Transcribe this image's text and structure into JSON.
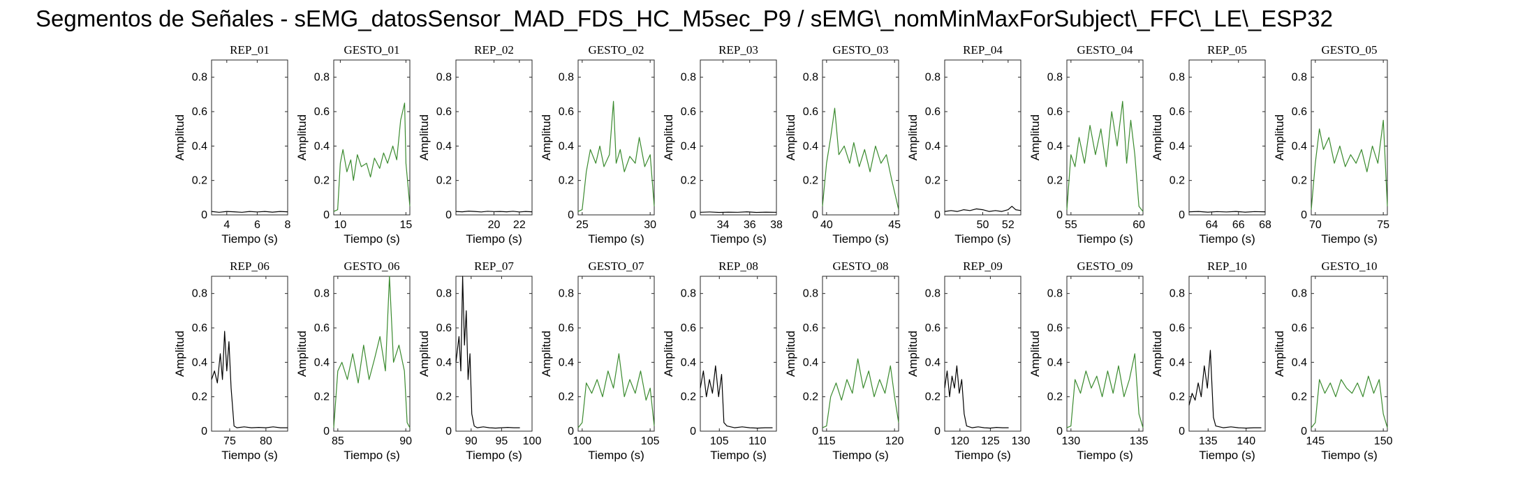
{
  "title": "Segmentos de Señales - sEMG_datosSensor_MAD_FDS_HC_M5sec_P9 / sEMG\\_nomMinMaxForSubject\\_FFC\\_LE\\_ESP32",
  "colors": {
    "rep": "#000000",
    "gesto": "#3a8a2e"
  },
  "chart_data": [
    {
      "type": "line",
      "title": "REP_01",
      "kind": "rep",
      "xlim": [
        3,
        8
      ],
      "xticks": [
        4,
        6,
        8
      ],
      "ylim": [
        0,
        0.9
      ],
      "yticks": [
        0,
        0.2,
        0.4,
        0.6,
        0.8
      ],
      "xlabel": "Tiempo (s)",
      "ylabel": "Amplitud",
      "signal": {
        "x": [
          3,
          3.5,
          4,
          4.5,
          5,
          5.5,
          6,
          6.5,
          7,
          7.5,
          8
        ],
        "y": [
          0.02,
          0.015,
          0.02,
          0.018,
          0.015,
          0.02,
          0.017,
          0.02,
          0.016,
          0.02,
          0.018
        ]
      }
    },
    {
      "type": "line",
      "title": "GESTO_01",
      "kind": "gesto",
      "xlim": [
        9.5,
        15.3
      ],
      "xticks": [
        10,
        15
      ],
      "ylim": [
        0,
        0.9
      ],
      "yticks": [
        0,
        0.2,
        0.4,
        0.6,
        0.8
      ],
      "xlabel": "Tiempo (s)",
      "ylabel": "Amplitud",
      "signal": {
        "x": [
          9.5,
          9.8,
          10,
          10.2,
          10.5,
          10.8,
          11,
          11.3,
          11.6,
          12,
          12.3,
          12.6,
          13,
          13.3,
          13.6,
          14,
          14.3,
          14.6,
          14.9,
          15,
          15.3
        ],
        "y": [
          0.02,
          0.03,
          0.3,
          0.38,
          0.25,
          0.32,
          0.2,
          0.35,
          0.28,
          0.3,
          0.22,
          0.33,
          0.27,
          0.36,
          0.3,
          0.4,
          0.32,
          0.55,
          0.65,
          0.3,
          0.05
        ]
      }
    },
    {
      "type": "line",
      "title": "REP_02",
      "kind": "rep",
      "xlim": [
        17,
        23
      ],
      "xticks": [
        20,
        22
      ],
      "ylim": [
        0,
        0.9
      ],
      "yticks": [
        0,
        0.2,
        0.4,
        0.6,
        0.8
      ],
      "xlabel": "Tiempo (s)",
      "ylabel": "Amplitud",
      "signal": {
        "x": [
          17,
          17.5,
          18,
          18.5,
          19,
          19.5,
          20,
          20.5,
          21,
          21.5,
          22,
          22.5,
          23
        ],
        "y": [
          0.02,
          0.018,
          0.022,
          0.02,
          0.017,
          0.021,
          0.019,
          0.02,
          0.018,
          0.021,
          0.017,
          0.02,
          0.018
        ]
      }
    },
    {
      "type": "line",
      "title": "GESTO_02",
      "kind": "gesto",
      "xlim": [
        24.7,
        30.3
      ],
      "xticks": [
        25,
        30
      ],
      "ylim": [
        0,
        0.9
      ],
      "yticks": [
        0,
        0.2,
        0.4,
        0.6,
        0.8
      ],
      "xlabel": "Tiempo (s)",
      "ylabel": "Amplitud",
      "signal": {
        "x": [
          24.7,
          25,
          25.3,
          25.6,
          26,
          26.3,
          26.6,
          27,
          27.3,
          27.5,
          27.8,
          28.1,
          28.5,
          28.9,
          29.2,
          29.6,
          30,
          30.3
        ],
        "y": [
          0.02,
          0.03,
          0.25,
          0.38,
          0.3,
          0.4,
          0.28,
          0.35,
          0.66,
          0.3,
          0.38,
          0.25,
          0.34,
          0.3,
          0.45,
          0.28,
          0.35,
          0.05
        ]
      }
    },
    {
      "type": "line",
      "title": "REP_03",
      "kind": "rep",
      "xlim": [
        32.3,
        38
      ],
      "xticks": [
        34,
        36,
        38
      ],
      "ylim": [
        0,
        0.9
      ],
      "yticks": [
        0,
        0.2,
        0.4,
        0.6,
        0.8
      ],
      "xlabel": "Tiempo (s)",
      "ylabel": "Amplitud",
      "signal": {
        "x": [
          32.3,
          33,
          33.7,
          34.4,
          35.1,
          35.8,
          36.5,
          37.2,
          38
        ],
        "y": [
          0.015,
          0.017,
          0.014,
          0.016,
          0.015,
          0.018,
          0.014,
          0.016,
          0.015
        ]
      }
    },
    {
      "type": "line",
      "title": "GESTO_03",
      "kind": "gesto",
      "xlim": [
        39.7,
        45.3
      ],
      "xticks": [
        40,
        45
      ],
      "ylim": [
        0,
        0.9
      ],
      "yticks": [
        0,
        0.2,
        0.4,
        0.6,
        0.8
      ],
      "xlabel": "Tiempo (s)",
      "ylabel": "Amplitud",
      "signal": {
        "x": [
          39.7,
          40,
          40.3,
          40.6,
          40.9,
          41.3,
          41.7,
          42,
          42.4,
          42.8,
          43.2,
          43.6,
          44,
          44.4,
          44.8,
          45.1,
          45.3
        ],
        "y": [
          0.05,
          0.3,
          0.45,
          0.62,
          0.35,
          0.4,
          0.3,
          0.42,
          0.28,
          0.38,
          0.25,
          0.4,
          0.3,
          0.35,
          0.2,
          0.1,
          0.03
        ]
      }
    },
    {
      "type": "line",
      "title": "REP_04",
      "kind": "rep",
      "xlim": [
        47,
        53
      ],
      "xticks": [
        50,
        52
      ],
      "ylim": [
        0,
        0.9
      ],
      "yticks": [
        0,
        0.2,
        0.4,
        0.6,
        0.8
      ],
      "xlabel": "Tiempo (s)",
      "ylabel": "Amplitud",
      "signal": {
        "x": [
          47,
          47.5,
          48,
          48.5,
          49,
          49.5,
          50,
          50.5,
          51,
          51.5,
          52,
          52.3,
          52.6,
          53
        ],
        "y": [
          0.02,
          0.025,
          0.02,
          0.03,
          0.025,
          0.035,
          0.03,
          0.02,
          0.025,
          0.02,
          0.03,
          0.05,
          0.03,
          0.025
        ]
      }
    },
    {
      "type": "line",
      "title": "GESTO_04",
      "kind": "gesto",
      "xlim": [
        54.7,
        60.3
      ],
      "xticks": [
        55,
        60
      ],
      "ylim": [
        0,
        0.9
      ],
      "yticks": [
        0,
        0.2,
        0.4,
        0.6,
        0.8
      ],
      "xlabel": "Tiempo (s)",
      "ylabel": "Amplitud",
      "signal": {
        "x": [
          54.7,
          55,
          55.3,
          55.6,
          56,
          56.4,
          56.8,
          57.2,
          57.6,
          58,
          58.4,
          58.8,
          59.1,
          59.4,
          59.7,
          60,
          60.3
        ],
        "y": [
          0.03,
          0.35,
          0.28,
          0.45,
          0.3,
          0.52,
          0.35,
          0.5,
          0.28,
          0.6,
          0.4,
          0.66,
          0.3,
          0.55,
          0.35,
          0.05,
          0.02
        ]
      }
    },
    {
      "type": "line",
      "title": "REP_05",
      "kind": "rep",
      "xlim": [
        62.3,
        68
      ],
      "xticks": [
        64,
        66,
        68
      ],
      "ylim": [
        0,
        0.9
      ],
      "yticks": [
        0,
        0.2,
        0.4,
        0.6,
        0.8
      ],
      "xlabel": "Tiempo (s)",
      "ylabel": "Amplitud",
      "signal": {
        "x": [
          62.3,
          63,
          63.7,
          64.4,
          65.1,
          65.8,
          66.5,
          67.2,
          68
        ],
        "y": [
          0.018,
          0.02,
          0.016,
          0.019,
          0.017,
          0.02,
          0.016,
          0.019,
          0.018
        ]
      }
    },
    {
      "type": "line",
      "title": "GESTO_05",
      "kind": "gesto",
      "xlim": [
        69.7,
        75.3
      ],
      "xticks": [
        70,
        75
      ],
      "ylim": [
        0,
        0.9
      ],
      "yticks": [
        0,
        0.2,
        0.4,
        0.6,
        0.8
      ],
      "xlabel": "Tiempo (s)",
      "ylabel": "Amplitud",
      "signal": {
        "x": [
          69.7,
          70,
          70.3,
          70.6,
          71,
          71.4,
          71.8,
          72.2,
          72.6,
          73,
          73.4,
          73.8,
          74.2,
          74.6,
          75,
          75.3
        ],
        "y": [
          0.03,
          0.3,
          0.5,
          0.38,
          0.45,
          0.3,
          0.4,
          0.28,
          0.35,
          0.3,
          0.38,
          0.25,
          0.4,
          0.3,
          0.55,
          0.05
        ]
      }
    },
    {
      "type": "line",
      "title": "REP_06",
      "kind": "rep",
      "xlim": [
        72.5,
        83
      ],
      "xticks": [
        75,
        80
      ],
      "ylim": [
        0,
        0.9
      ],
      "yticks": [
        0,
        0.2,
        0.4,
        0.6,
        0.8
      ],
      "xlabel": "Tiempo (s)",
      "ylabel": "Amplitud",
      "signal": {
        "x": [
          72.5,
          72.9,
          73.3,
          73.7,
          74,
          74.3,
          74.6,
          74.9,
          75.2,
          75.6,
          76,
          77,
          78,
          79,
          80,
          81,
          82,
          83
        ],
        "y": [
          0.3,
          0.35,
          0.28,
          0.45,
          0.3,
          0.58,
          0.35,
          0.52,
          0.25,
          0.03,
          0.02,
          0.025,
          0.02,
          0.022,
          0.02,
          0.025,
          0.02,
          0.02
        ]
      }
    },
    {
      "type": "line",
      "title": "GESTO_06",
      "kind": "gesto",
      "xlim": [
        84.7,
        90.3
      ],
      "xticks": [
        85,
        90
      ],
      "ylim": [
        0,
        0.9
      ],
      "yticks": [
        0,
        0.2,
        0.4,
        0.6,
        0.8
      ],
      "xlabel": "Tiempo (s)",
      "ylabel": "Amplitud",
      "signal": {
        "x": [
          84.7,
          85,
          85.3,
          85.7,
          86.1,
          86.5,
          86.9,
          87.3,
          87.7,
          88.1,
          88.5,
          88.8,
          89.1,
          89.5,
          89.9,
          90.1,
          90.3
        ],
        "y": [
          0.02,
          0.35,
          0.4,
          0.3,
          0.45,
          0.28,
          0.5,
          0.3,
          0.42,
          0.55,
          0.35,
          0.9,
          0.4,
          0.5,
          0.35,
          0.05,
          0.02
        ]
      }
    },
    {
      "type": "line",
      "title": "REP_07",
      "kind": "rep",
      "xlim": [
        87.5,
        100
      ],
      "xticks": [
        90,
        95,
        100
      ],
      "ylim": [
        0,
        0.9
      ],
      "yticks": [
        0,
        0.2,
        0.4,
        0.6,
        0.8
      ],
      "xlabel": "Tiempo (s)",
      "ylabel": "Amplitud",
      "signal": {
        "x": [
          87.5,
          88,
          88.3,
          88.6,
          88.9,
          89.2,
          89.5,
          89.8,
          90.1,
          90.5,
          91,
          92,
          93,
          94,
          95,
          96,
          97,
          98
        ],
        "y": [
          0.4,
          0.55,
          0.35,
          0.9,
          0.5,
          0.7,
          0.3,
          0.45,
          0.1,
          0.03,
          0.02,
          0.025,
          0.02,
          0.018,
          0.02,
          0.022,
          0.02,
          0.02
        ]
      }
    },
    {
      "type": "line",
      "title": "GESTO_07",
      "kind": "gesto",
      "xlim": [
        99.7,
        105.3
      ],
      "xticks": [
        100,
        105
      ],
      "ylim": [
        0,
        0.9
      ],
      "yticks": [
        0,
        0.2,
        0.4,
        0.6,
        0.8
      ],
      "xlabel": "Tiempo (s)",
      "ylabel": "Amplitud",
      "signal": {
        "x": [
          99.7,
          100,
          100.3,
          100.7,
          101.1,
          101.5,
          101.9,
          102.3,
          102.7,
          103.1,
          103.5,
          103.9,
          104.3,
          104.7,
          105,
          105.3
        ],
        "y": [
          0.02,
          0.05,
          0.28,
          0.22,
          0.3,
          0.2,
          0.35,
          0.25,
          0.45,
          0.2,
          0.3,
          0.22,
          0.35,
          0.18,
          0.25,
          0.03
        ]
      }
    },
    {
      "type": "line",
      "title": "REP_08",
      "kind": "rep",
      "xlim": [
        102.5,
        112.5
      ],
      "xticks": [
        105,
        110
      ],
      "ylim": [
        0,
        0.9
      ],
      "yticks": [
        0,
        0.2,
        0.4,
        0.6,
        0.8
      ],
      "xlabel": "Tiempo (s)",
      "ylabel": "Amplitud",
      "signal": {
        "x": [
          102.5,
          102.9,
          103.3,
          103.7,
          104.1,
          104.5,
          104.9,
          105.3,
          105.6,
          106,
          107,
          108,
          109,
          110,
          111,
          112
        ],
        "y": [
          0.25,
          0.35,
          0.2,
          0.3,
          0.22,
          0.38,
          0.2,
          0.33,
          0.05,
          0.03,
          0.02,
          0.025,
          0.02,
          0.018,
          0.02,
          0.02
        ]
      }
    },
    {
      "type": "line",
      "title": "GESTO_08",
      "kind": "gesto",
      "xlim": [
        114.7,
        120.3
      ],
      "xticks": [
        115,
        120
      ],
      "ylim": [
        0,
        0.9
      ],
      "yticks": [
        0,
        0.2,
        0.4,
        0.6,
        0.8
      ],
      "xlabel": "Tiempo (s)",
      "ylabel": "Amplitud",
      "signal": {
        "x": [
          114.7,
          115,
          115.3,
          115.7,
          116.1,
          116.5,
          116.9,
          117.3,
          117.7,
          118.1,
          118.5,
          118.9,
          119.3,
          119.7,
          120,
          120.3
        ],
        "y": [
          0.02,
          0.03,
          0.2,
          0.28,
          0.18,
          0.3,
          0.22,
          0.42,
          0.25,
          0.35,
          0.2,
          0.3,
          0.22,
          0.38,
          0.2,
          0.05
        ]
      }
    },
    {
      "type": "line",
      "title": "REP_09",
      "kind": "rep",
      "xlim": [
        117.5,
        130
      ],
      "xticks": [
        120,
        125,
        130
      ],
      "ylim": [
        0,
        0.9
      ],
      "yticks": [
        0,
        0.2,
        0.4,
        0.6,
        0.8
      ],
      "xlabel": "Tiempo (s)",
      "ylabel": "Amplitud",
      "signal": {
        "x": [
          117.5,
          117.9,
          118.3,
          118.7,
          119.1,
          119.5,
          119.9,
          120.3,
          120.7,
          121.1,
          122,
          123,
          124,
          125,
          126,
          127,
          128
        ],
        "y": [
          0.25,
          0.35,
          0.2,
          0.32,
          0.25,
          0.38,
          0.22,
          0.3,
          0.1,
          0.03,
          0.02,
          0.025,
          0.02,
          0.018,
          0.022,
          0.02,
          0.02
        ]
      }
    },
    {
      "type": "line",
      "title": "GESTO_09",
      "kind": "gesto",
      "xlim": [
        129.7,
        135.3
      ],
      "xticks": [
        130,
        135
      ],
      "ylim": [
        0,
        0.9
      ],
      "yticks": [
        0,
        0.2,
        0.4,
        0.6,
        0.8
      ],
      "xlabel": "Tiempo (s)",
      "ylabel": "Amplitud",
      "signal": {
        "x": [
          129.7,
          130,
          130.3,
          130.7,
          131.1,
          131.5,
          131.9,
          132.3,
          132.7,
          133.1,
          133.5,
          133.9,
          134.3,
          134.7,
          135,
          135.3
        ],
        "y": [
          0.02,
          0.03,
          0.3,
          0.22,
          0.35,
          0.25,
          0.32,
          0.2,
          0.35,
          0.22,
          0.38,
          0.2,
          0.3,
          0.45,
          0.1,
          0.02
        ]
      }
    },
    {
      "type": "line",
      "title": "REP_10",
      "kind": "rep",
      "xlim": [
        132.5,
        142.5
      ],
      "xticks": [
        135,
        140
      ],
      "ylim": [
        0,
        0.9
      ],
      "yticks": [
        0,
        0.2,
        0.4,
        0.6,
        0.8
      ],
      "xlabel": "Tiempo (s)",
      "ylabel": "Amplitud",
      "signal": {
        "x": [
          132.5,
          132.9,
          133.3,
          133.7,
          134.1,
          134.5,
          134.9,
          135.3,
          135.7,
          136,
          137,
          138,
          139,
          140,
          141,
          142
        ],
        "y": [
          0.15,
          0.22,
          0.18,
          0.28,
          0.2,
          0.38,
          0.25,
          0.47,
          0.08,
          0.03,
          0.02,
          0.025,
          0.02,
          0.018,
          0.02,
          0.02
        ]
      }
    },
    {
      "type": "line",
      "title": "GESTO_10",
      "kind": "gesto",
      "xlim": [
        144.7,
        150.3
      ],
      "xticks": [
        145,
        150
      ],
      "ylim": [
        0,
        0.9
      ],
      "yticks": [
        0,
        0.2,
        0.4,
        0.6,
        0.8
      ],
      "xlabel": "Tiempo (s)",
      "ylabel": "Amplitud",
      "signal": {
        "x": [
          144.7,
          145,
          145.3,
          145.7,
          146.1,
          146.5,
          146.9,
          147.3,
          147.7,
          148.1,
          148.5,
          148.9,
          149.3,
          149.7,
          150,
          150.3
        ],
        "y": [
          0.02,
          0.05,
          0.3,
          0.22,
          0.28,
          0.2,
          0.3,
          0.25,
          0.22,
          0.28,
          0.2,
          0.32,
          0.22,
          0.3,
          0.1,
          0.02
        ]
      }
    }
  ]
}
